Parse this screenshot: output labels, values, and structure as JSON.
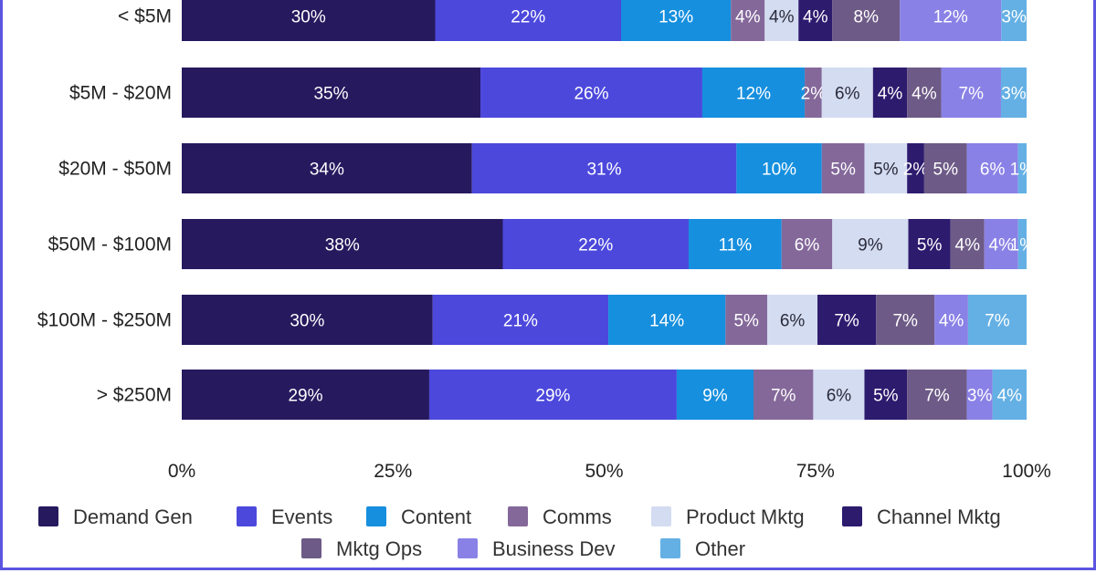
{
  "chart_data": {
    "type": "bar",
    "orientation": "horizontal",
    "stacked": true,
    "title": "",
    "xlabel": "",
    "ylabel": "",
    "xlim": [
      0,
      100
    ],
    "x_ticks": [
      "0%",
      "25%",
      "50%",
      "75%",
      "100%"
    ],
    "categories": [
      "< $5M",
      "$5M - $20M",
      "$20M - $50M",
      "$50M - $100M",
      "$100M - $250M",
      "> $250M"
    ],
    "series": [
      {
        "name": "Demand Gen",
        "color": "#27195e",
        "values": [
          30,
          35,
          34,
          38,
          30,
          29
        ]
      },
      {
        "name": "Events",
        "color": "#4c48dc",
        "values": [
          22,
          26,
          31,
          22,
          21,
          29
        ]
      },
      {
        "name": "Content",
        "color": "#168fde",
        "values": [
          13,
          12,
          10,
          11,
          14,
          9
        ]
      },
      {
        "name": "Comms",
        "color": "#84689a",
        "values": [
          4,
          2,
          5,
          6,
          5,
          7
        ]
      },
      {
        "name": "Product Mktg",
        "color": "#d3dcf1",
        "values": [
          4,
          6,
          5,
          9,
          6,
          6
        ]
      },
      {
        "name": "Channel Mktg",
        "color": "#2d1b6e",
        "values": [
          4,
          4,
          2,
          5,
          7,
          5
        ]
      },
      {
        "name": "Mktg Ops",
        "color": "#6d5a86",
        "values": [
          8,
          4,
          5,
          4,
          7,
          7
        ]
      },
      {
        "name": "Business Dev",
        "color": "#8a81e6",
        "values": [
          12,
          7,
          6,
          4,
          4,
          3
        ]
      },
      {
        "name": "Other",
        "color": "#64b0e4",
        "values": [
          3,
          3,
          1,
          1,
          7,
          4
        ]
      }
    ],
    "labels": [
      [
        "30%",
        "22%",
        "13%",
        "4%",
        "4%",
        "4%",
        "8%",
        "12%",
        "3%"
      ],
      [
        "35%",
        "26%",
        "12%",
        "2%",
        "6%",
        "4%",
        "4%",
        "7%",
        "3%"
      ],
      [
        "34%",
        "31%",
        "10%",
        "5%",
        "5%",
        "2%",
        "5%",
        "6%",
        "1%"
      ],
      [
        "38%",
        "22%",
        "11%",
        "6%",
        "9%",
        "5%",
        "4%",
        "4%",
        "1%"
      ],
      [
        "30%",
        "21%",
        "14%",
        "5%",
        "6%",
        "7%",
        "7%",
        "4%",
        "7%"
      ],
      [
        "29%",
        "29%",
        "9%",
        "7%",
        "6%",
        "5%",
        "7%",
        "3%",
        "4%"
      ]
    ],
    "grid": false,
    "legend": "bottom"
  }
}
